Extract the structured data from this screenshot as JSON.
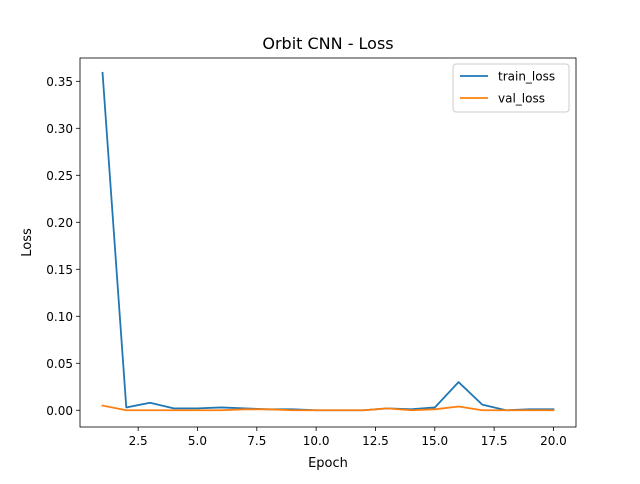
{
  "chart_data": {
    "type": "line",
    "title": "Orbit CNN - Loss",
    "xlabel": "Epoch",
    "ylabel": "Loss",
    "xlim": [
      0.05,
      20.95
    ],
    "ylim": [
      -0.0178,
      0.3748
    ],
    "xticks": [
      2.5,
      5.0,
      7.5,
      10.0,
      12.5,
      15.0,
      17.5,
      20.0
    ],
    "xtick_labels": [
      "2.5",
      "5.0",
      "7.5",
      "10.0",
      "12.5",
      "15.0",
      "17.5",
      "20.0"
    ],
    "yticks": [
      0.0,
      0.05,
      0.1,
      0.15,
      0.2,
      0.25,
      0.3,
      0.35
    ],
    "ytick_labels": [
      "0.00",
      "0.05",
      "0.10",
      "0.15",
      "0.20",
      "0.25",
      "0.30",
      "0.35"
    ],
    "grid": false,
    "legend_position": "top-right",
    "x": [
      1,
      2,
      3,
      4,
      5,
      6,
      7,
      8,
      9,
      10,
      11,
      12,
      13,
      14,
      15,
      16,
      17,
      18,
      19,
      20
    ],
    "series": [
      {
        "name": "train_loss",
        "color": "#1f77b4",
        "values": [
          0.359,
          0.003,
          0.008,
          0.002,
          0.002,
          0.003,
          0.002,
          0.001,
          0.001,
          0.0,
          0.0,
          0.0,
          0.002,
          0.001,
          0.003,
          0.03,
          0.006,
          0.0,
          0.001,
          0.001
        ]
      },
      {
        "name": "val_loss",
        "color": "#ff7f0e",
        "values": [
          0.005,
          0.0,
          0.0,
          0.0,
          0.0,
          0.0,
          0.001,
          0.001,
          0.0,
          0.0,
          0.0,
          0.0,
          0.002,
          0.0,
          0.001,
          0.004,
          0.0,
          0.0,
          0.0,
          0.0
        ]
      }
    ]
  }
}
